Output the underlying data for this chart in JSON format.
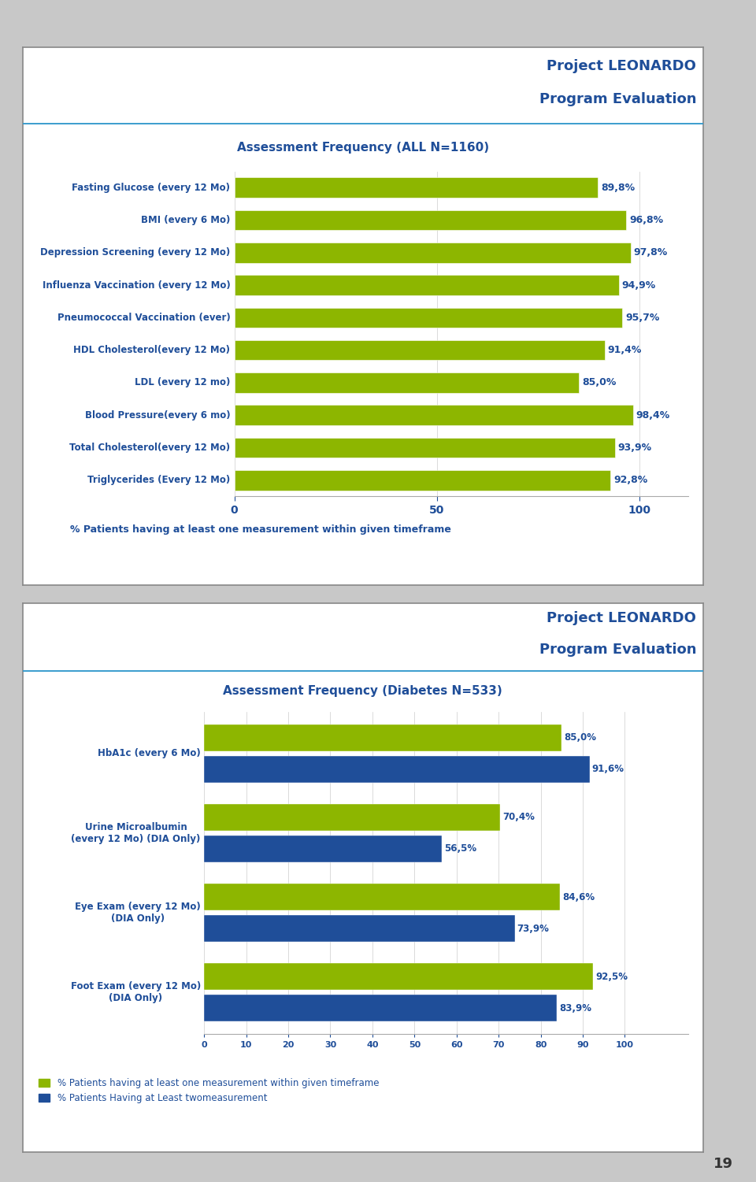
{
  "chart1": {
    "title": "Assessment Frequency (ALL N=1160)",
    "categories": [
      "Fasting Glucose (every 12 Mo)",
      "BMI (every 6 Mo)",
      "Depression Screening (every 12 Mo)",
      "Influenza Vaccination (every 12 Mo)",
      "Pneumococcal Vaccination (ever)",
      "HDL Cholesterol(every 12 Mo)",
      "LDL (every 12 mo)",
      "Blood Pressure(every 6 mo)",
      "Total Cholesterol(every 12 Mo)",
      "Triglycerides (Every 12 Mo)"
    ],
    "values": [
      89.8,
      96.8,
      97.8,
      94.9,
      95.7,
      91.4,
      85.0,
      98.4,
      93.9,
      92.8
    ],
    "labels": [
      "89,8%",
      "96,8%",
      "97,8%",
      "94,9%",
      "95,7%",
      "91,4%",
      "85,0%",
      "98,4%",
      "93,9%",
      "92,8%"
    ],
    "bar_color": "#8db600",
    "label_color": "#1f4e99",
    "title_color": "#1f4e99",
    "axis_color": "#1f4e99",
    "xticks": [
      0,
      50,
      100
    ],
    "footer_text": "% Patients having at least one measurement within given timeframe"
  },
  "chart2": {
    "title": "Assessment Frequency (Diabetes N=533)",
    "categories": [
      "HbA1c (every 6 Mo)",
      "Urine Microalbumin\n(every 12 Mo) (DIA Only)",
      "Eye Exam (every 12 Mo)\n(DIA Only)",
      "Foot Exam (every 12 Mo)\n(DIA Only)"
    ],
    "values_green": [
      85.0,
      70.4,
      84.6,
      92.5
    ],
    "values_blue": [
      91.6,
      56.5,
      73.9,
      83.9
    ],
    "labels_green": [
      "85,0%",
      "70,4%",
      "84,6%",
      "92,5%"
    ],
    "labels_blue": [
      "91,6%",
      "56,5%",
      "73,9%",
      "83,9%"
    ],
    "bar_color_green": "#8db600",
    "bar_color_blue": "#1f4e99",
    "label_color": "#1f4e99",
    "title_color": "#1f4e99",
    "axis_color": "#1f4e99",
    "xticks": [
      0,
      10,
      20,
      30,
      40,
      50,
      60,
      70,
      80,
      90,
      100
    ],
    "legend1": "% Patients having at least one measurement within given timeframe",
    "legend2": "% Patients Having at Least twomeasurement"
  },
  "header_title1": "Project LEONARDO",
  "header_title2": "Program Evaluation",
  "header_color": "#1f4e99",
  "header_line_color": "#3399cc",
  "panel_border_color": "#888888",
  "bg_color": "#c8c8c8",
  "white": "#ffffff",
  "page_number": "19"
}
